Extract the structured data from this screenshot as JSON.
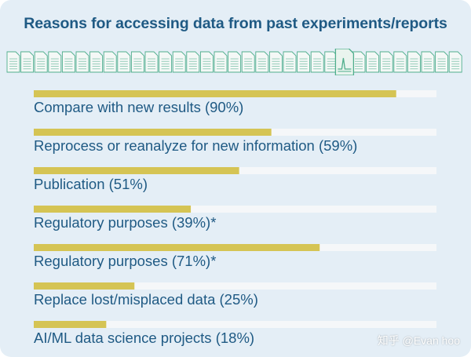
{
  "title": "Reasons for accessing data from past experiments/reports",
  "watermark": "知乎 @Evan hoo",
  "colors": {
    "card_background": "#e4eef6",
    "title": "#1f5a84",
    "label": "#1f5a84",
    "bar_fill": "#d5c454",
    "bar_track": "#f5f7f9",
    "doc_icon_stroke": "#4fae8c",
    "doc_icon_highlight_bg": "#e9f4ee"
  },
  "icons": {
    "document_row": "document-icon",
    "highlighted_document": "document-chart-icon"
  },
  "chart_data": {
    "type": "bar",
    "orientation": "horizontal",
    "categories": [
      "Compare with new results (90%)",
      "Reprocess or reanalyze for new information (59%)",
      "Publication (51%)",
      "Regulatory purposes (39%)*",
      "Regulatory purposes (71%)*",
      "Replace lost/misplaced data (25%)",
      "AI/ML data science projects (18%)"
    ],
    "values": [
      90,
      59,
      51,
      39,
      71,
      25,
      18
    ],
    "xlim": [
      0,
      100
    ],
    "unit": "%",
    "grid": false,
    "legend": "none"
  }
}
